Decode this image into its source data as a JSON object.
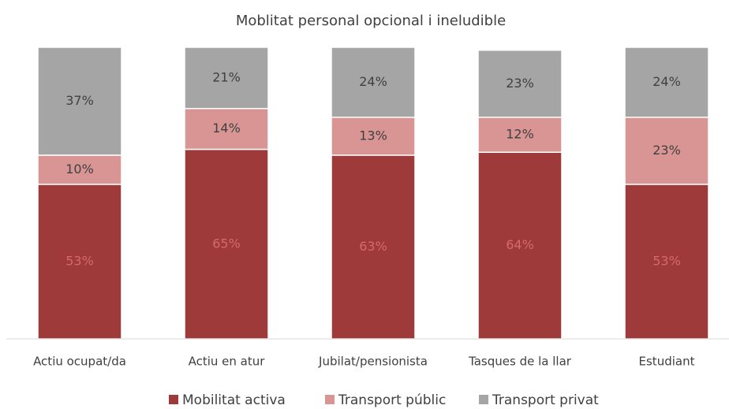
{
  "chart_data": {
    "type": "stacked_bar",
    "title": "Moblitat personal opcional i ineludible",
    "categories": [
      "Actiu ocupat/da",
      "Actiu en atur",
      "Jubilat/pensionista",
      "Tasques de la llar",
      "Estudiant"
    ],
    "series": [
      {
        "name": "Mobilitat activa",
        "color": "#9e3b3a",
        "values": [
          53,
          65,
          63,
          64,
          53
        ],
        "value_labels": [
          "53%",
          "65%",
          "63%",
          "64%",
          "53%"
        ]
      },
      {
        "name": "Transport públic",
        "color": "#d99594",
        "values": [
          10,
          14,
          13,
          12,
          23
        ],
        "value_labels": [
          "10%",
          "14%",
          "13%",
          "12%",
          "23%"
        ]
      },
      {
        "name": "Transport privat",
        "color": "#a5a5a5",
        "values": [
          37,
          21,
          24,
          23,
          24
        ],
        "value_labels": [
          "37%",
          "21%",
          "24%",
          "23%",
          "24%"
        ]
      }
    ],
    "ylim": [
      0,
      100
    ],
    "legend": "bottom"
  }
}
